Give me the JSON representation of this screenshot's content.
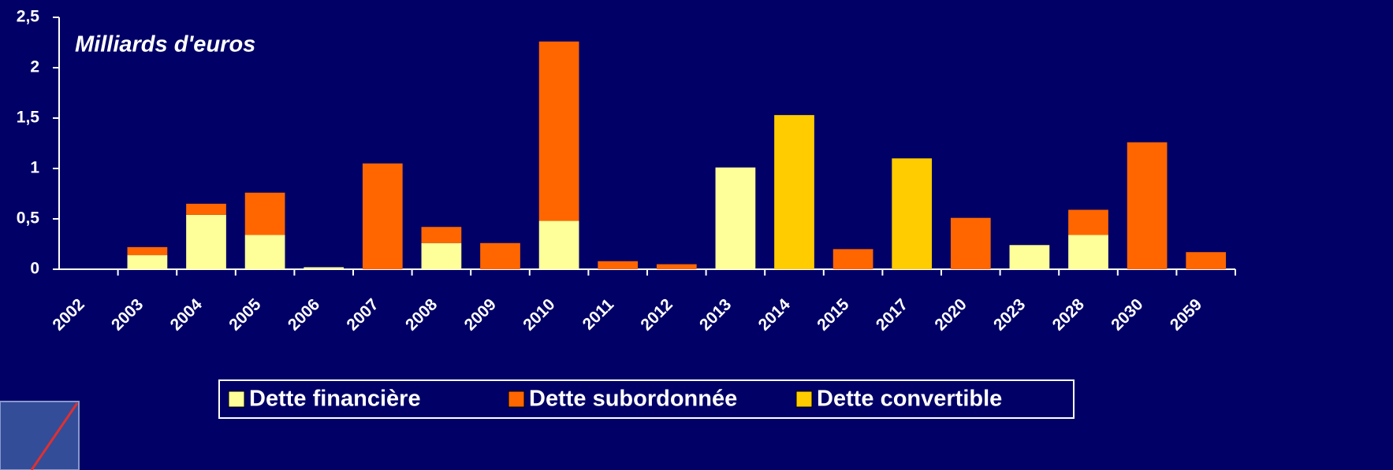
{
  "chart_data": {
    "type": "stacked_bar",
    "annotation": "Milliards d'euros",
    "categories": [
      "2002",
      "2003",
      "2004",
      "2005",
      "2006",
      "2007",
      "2008",
      "2009",
      "2010",
      "2011",
      "2012",
      "2013",
      "2014",
      "2015",
      "2017",
      "2020",
      "2023",
      "2028",
      "2030",
      "2059"
    ],
    "series": [
      {
        "name": "Dette financière",
        "color": "#ffff99",
        "values": [
          0,
          0.14,
          0.54,
          0.34,
          0.02,
          0,
          0.26,
          0,
          0.48,
          0,
          0,
          1.01,
          0,
          0,
          0,
          0,
          0.24,
          0.34,
          0,
          0
        ]
      },
      {
        "name": "Dette subordonnée",
        "color": "#ff6600",
        "values": [
          0,
          0.08,
          0.11,
          0.42,
          0,
          1.05,
          0.16,
          0.26,
          1.78,
          0.08,
          0.05,
          0,
          0,
          0.2,
          0,
          0.51,
          0,
          0.25,
          1.26,
          0.17
        ]
      },
      {
        "name": "Dette convertible",
        "color": "#ffcc00",
        "values": [
          0,
          0,
          0,
          0,
          0,
          0,
          0,
          0,
          0,
          0,
          0,
          0,
          1.53,
          0,
          1.1,
          0,
          0,
          0,
          0,
          0
        ]
      }
    ],
    "ylim": [
      0,
      2.5
    ],
    "yticks": [
      0,
      {
        "value": 0.5,
        "label": "0,5"
      },
      1,
      {
        "value": 1.5,
        "label": "1,5"
      },
      2,
      {
        "value": 2.5,
        "label": "2,5"
      }
    ],
    "grid": false,
    "legend": "bottom"
  }
}
